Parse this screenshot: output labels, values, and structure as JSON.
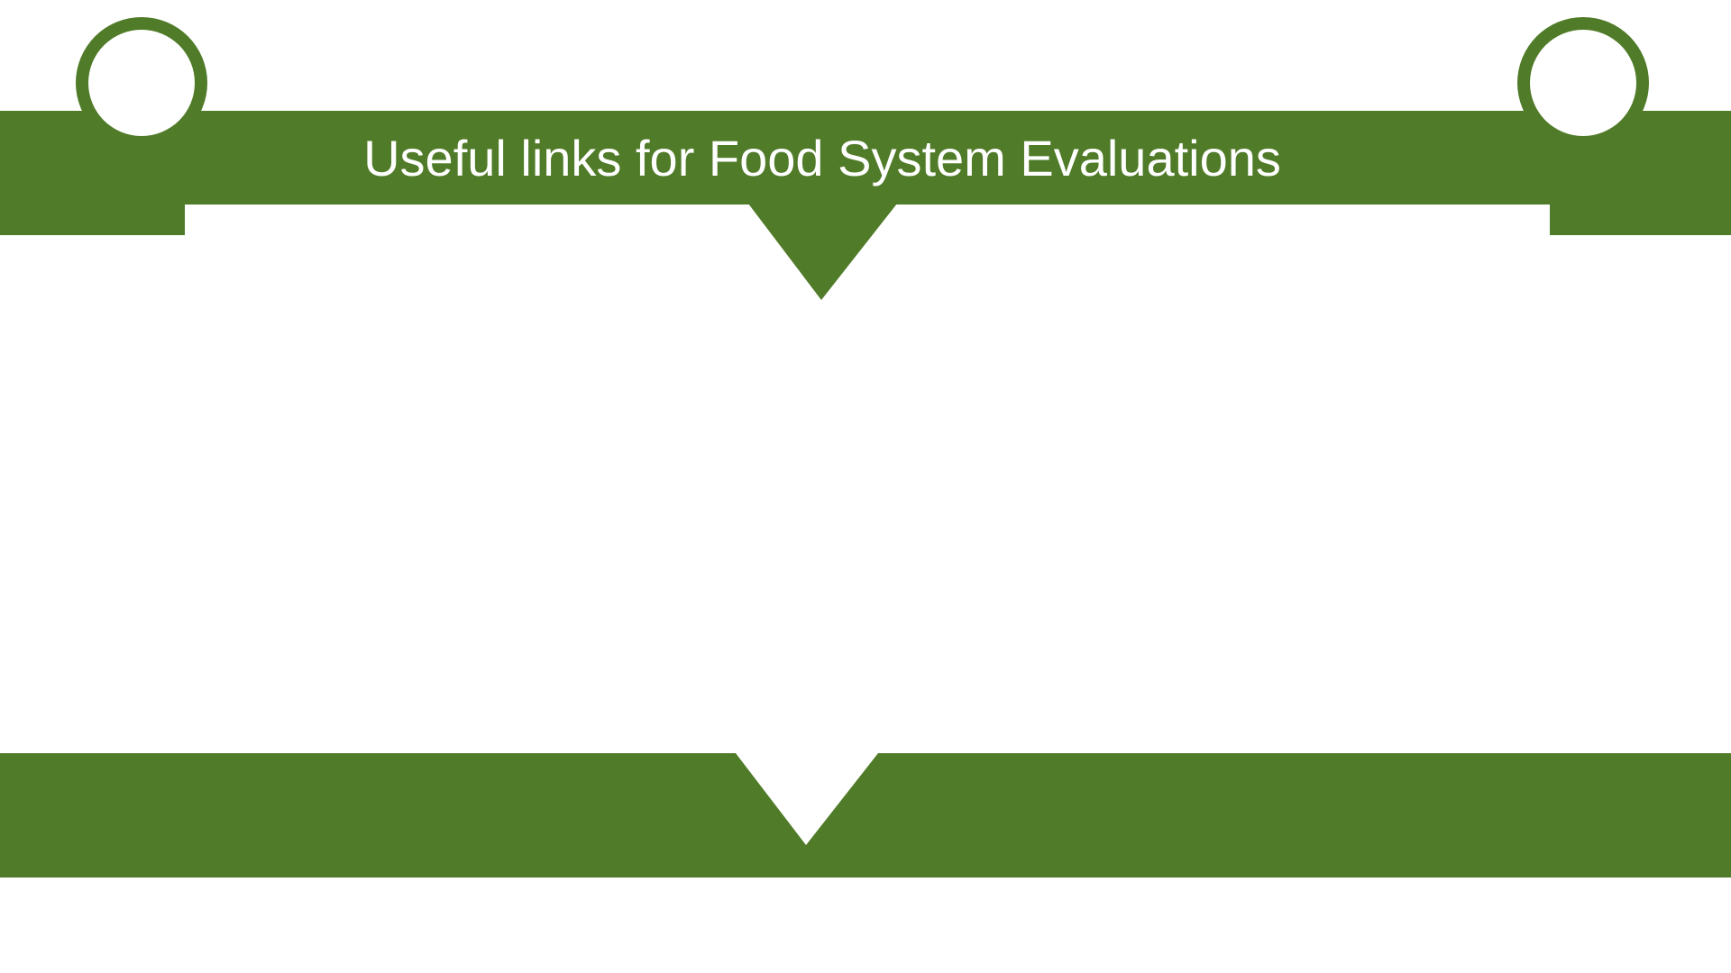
{
  "slide": {
    "title": "Useful links for Food System Evaluations"
  },
  "colors": {
    "accent": "#507b28",
    "background": "#ffffff",
    "title_text": "#ffffff"
  }
}
